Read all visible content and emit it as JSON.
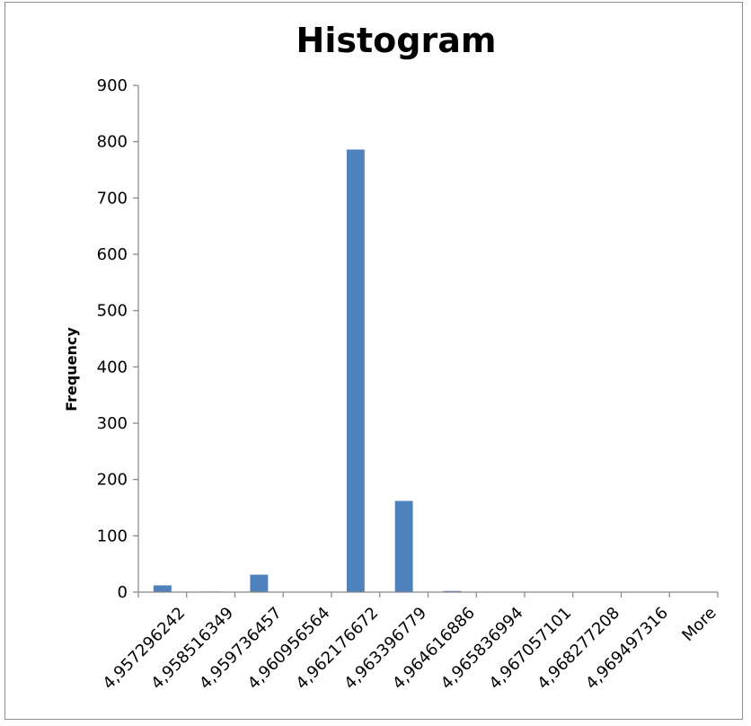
{
  "chart_data": {
    "type": "bar",
    "title": "Histogram",
    "xlabel": "",
    "ylabel": "Frequency",
    "ylim": [
      0,
      900
    ],
    "yticks": [
      0,
      100,
      200,
      300,
      400,
      500,
      600,
      700,
      800,
      900
    ],
    "grid": false,
    "legend": "none",
    "bar_color": "#4f81bd",
    "categories": [
      "4,957296242",
      "4,958516349",
      "4,959736457",
      "4,960956564",
      "4,962176672",
      "4,963396779",
      "4,964616886",
      "4,965836994",
      "4,967057101",
      "4,968277208",
      "4,969497316",
      "More"
    ],
    "values": [
      12,
      1,
      31,
      0,
      786,
      162,
      2,
      0,
      0,
      0,
      0,
      0
    ]
  }
}
